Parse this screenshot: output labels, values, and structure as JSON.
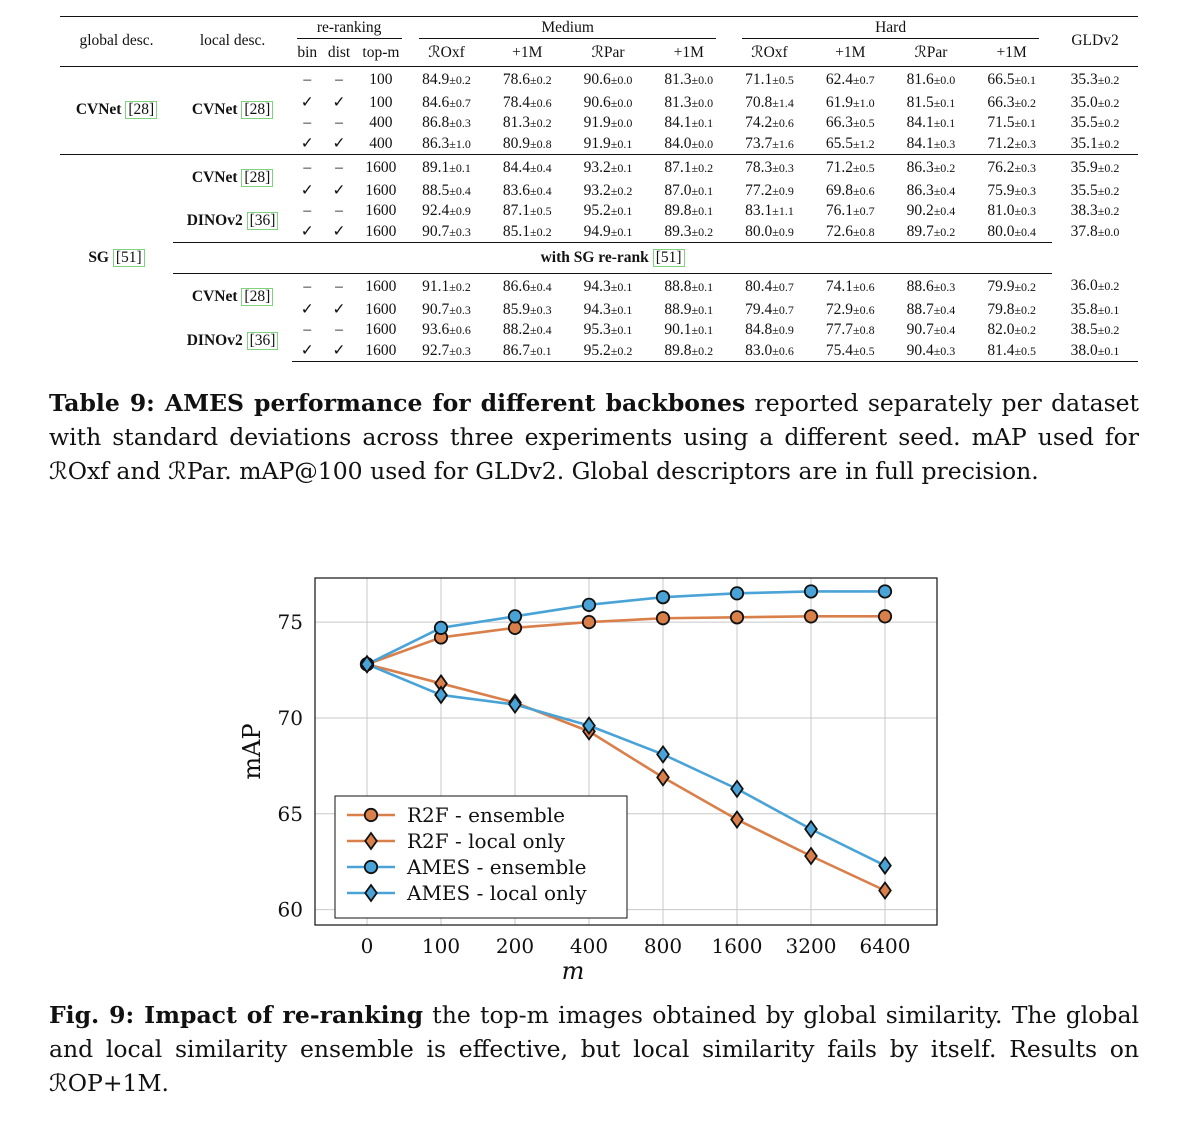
{
  "table": {
    "headers": {
      "global_desc": "global desc.",
      "local_desc": "local desc.",
      "reranking": "re-ranking",
      "medium": "Medium",
      "hard": "Hard",
      "gldv2": "GLDv2",
      "bin": "bin",
      "dist": "dist",
      "topm": "top-m",
      "roxf": "ℛOxf",
      "rpar": "ℛPar",
      "plus1m": "+1M"
    },
    "cvnet_group": {
      "global": "CVNet",
      "global_cite": "[28]",
      "local": "CVNet",
      "local_cite": "[28]",
      "rows": [
        {
          "bin": "–",
          "dist": "–",
          "topm": "100",
          "vals": [
            "84.9",
            "±0.2",
            "78.6",
            "±0.2",
            "90.6",
            "±0.0",
            "81.3",
            "±0.0",
            "71.1",
            "±0.5",
            "62.4",
            "±0.7",
            "81.6",
            "±0.0",
            "66.5",
            "±0.1",
            "35.3",
            "±0.2"
          ]
        },
        {
          "bin": "✓",
          "dist": "✓",
          "topm": "100",
          "vals": [
            "84.6",
            "±0.7",
            "78.4",
            "±0.6",
            "90.6",
            "±0.0",
            "81.3",
            "±0.0",
            "70.8",
            "±1.4",
            "61.9",
            "±1.0",
            "81.5",
            "±0.1",
            "66.3",
            "±0.2",
            "35.0",
            "±0.2"
          ]
        },
        {
          "bin": "–",
          "dist": "–",
          "topm": "400",
          "vals": [
            "86.8",
            "±0.3",
            "81.3",
            "±0.2",
            "91.9",
            "±0.0",
            "84.1",
            "±0.1",
            "74.2",
            "±0.6",
            "66.3",
            "±0.5",
            "84.1",
            "±0.1",
            "71.5",
            "±0.1",
            "35.5",
            "±0.2"
          ]
        },
        {
          "bin": "✓",
          "dist": "✓",
          "topm": "400",
          "vals": [
            "86.3",
            "±1.0",
            "80.9",
            "±0.8",
            "91.9",
            "±0.1",
            "84.0",
            "±0.0",
            "73.7",
            "±1.6",
            "65.5",
            "±1.2",
            "84.1",
            "±0.3",
            "71.2",
            "±0.3",
            "35.1",
            "±0.2"
          ]
        }
      ]
    },
    "sg_group": {
      "global": "SG",
      "global_cite": "[51]",
      "sub1": [
        {
          "local": "CVNet",
          "cite": "[28]",
          "rows": [
            {
              "bin": "–",
              "dist": "–",
              "topm": "1600",
              "vals": [
                "89.1",
                "±0.1",
                "84.4",
                "±0.4",
                "93.2",
                "±0.1",
                "87.1",
                "±0.2",
                "78.3",
                "±0.3",
                "71.2",
                "±0.5",
                "86.3",
                "±0.2",
                "76.2",
                "±0.3",
                "35.9",
                "±0.2"
              ]
            },
            {
              "bin": "✓",
              "dist": "✓",
              "topm": "1600",
              "vals": [
                "88.5",
                "±0.4",
                "83.6",
                "±0.4",
                "93.2",
                "±0.2",
                "87.0",
                "±0.1",
                "77.2",
                "±0.9",
                "69.8",
                "±0.6",
                "86.3",
                "±0.4",
                "75.9",
                "±0.3",
                "35.5",
                "±0.2"
              ]
            }
          ]
        },
        {
          "local": "DINOv2",
          "cite": "[36]",
          "rows": [
            {
              "bin": "–",
              "dist": "–",
              "topm": "1600",
              "vals": [
                "92.4",
                "±0.9",
                "87.1",
                "±0.5",
                "95.2",
                "±0.1",
                "89.8",
                "±0.1",
                "83.1",
                "±1.1",
                "76.1",
                "±0.7",
                "90.2",
                "±0.4",
                "81.0",
                "±0.3",
                "38.3",
                "±0.2"
              ]
            },
            {
              "bin": "✓",
              "dist": "✓",
              "topm": "1600",
              "vals": [
                "90.7",
                "±0.3",
                "85.1",
                "±0.2",
                "94.9",
                "±0.1",
                "89.3",
                "±0.2",
                "80.0",
                "±0.9",
                "72.6",
                "±0.8",
                "89.7",
                "±0.2",
                "80.0",
                "±0.4",
                "37.8",
                "±0.0"
              ]
            }
          ]
        }
      ],
      "rerank_label": "with SG re-rank",
      "rerank_cite": "[51]",
      "sub2": [
        {
          "local": "CVNet",
          "cite": "[28]",
          "rows": [
            {
              "bin": "–",
              "dist": "–",
              "topm": "1600",
              "vals": [
                "91.1",
                "±0.2",
                "86.6",
                "±0.4",
                "94.3",
                "±0.1",
                "88.8",
                "±0.1",
                "80.4",
                "±0.7",
                "74.1",
                "±0.6",
                "88.6",
                "±0.3",
                "79.9",
                "±0.2",
                "36.0",
                "±0.2"
              ]
            },
            {
              "bin": "✓",
              "dist": "✓",
              "topm": "1600",
              "vals": [
                "90.7",
                "±0.3",
                "85.9",
                "±0.3",
                "94.3",
                "±0.1",
                "88.9",
                "±0.1",
                "79.4",
                "±0.7",
                "72.9",
                "±0.6",
                "88.7",
                "±0.4",
                "79.8",
                "±0.2",
                "35.8",
                "±0.1"
              ]
            }
          ]
        },
        {
          "local": "DINOv2",
          "cite": "[36]",
          "rows": [
            {
              "bin": "–",
              "dist": "–",
              "topm": "1600",
              "vals": [
                "93.6",
                "±0.6",
                "88.2",
                "±0.4",
                "95.3",
                "±0.1",
                "90.1",
                "±0.1",
                "84.8",
                "±0.9",
                "77.7",
                "±0.8",
                "90.7",
                "±0.4",
                "82.0",
                "±0.2",
                "38.5",
                "±0.2"
              ]
            },
            {
              "bin": "✓",
              "dist": "✓",
              "topm": "1600",
              "vals": [
                "92.7",
                "±0.3",
                "86.7",
                "±0.1",
                "95.2",
                "±0.2",
                "89.8",
                "±0.2",
                "83.0",
                "±0.6",
                "75.4",
                "±0.5",
                "90.4",
                "±0.3",
                "81.4",
                "±0.5",
                "38.0",
                "±0.1"
              ]
            }
          ]
        }
      ]
    }
  },
  "table_caption": {
    "label": "Table 9: AMES performance for different backbones",
    "text": " reported separately per dataset with standard deviations across three experiments using a different seed. mAP used for ℛOxf and ℛPar. mAP@100 used for GLDv2. Global descriptors are in full precision."
  },
  "figure_caption": {
    "label": "Fig. 9: Impact of re-ranking",
    "text": " the top-m images obtained by global similarity. The global and local similarity ensemble is effective, but local similarity fails by itself. Results on ℛOP+1M."
  },
  "chart_data": {
    "type": "line",
    "xlabel": "m",
    "ylabel": "mAP",
    "categories": [
      "0",
      "100",
      "200",
      "400",
      "800",
      "1600",
      "3200",
      "6400"
    ],
    "ylim": [
      59.2,
      77.3
    ],
    "yticks": [
      60,
      65,
      70,
      75
    ],
    "grid": true,
    "legend_position": "bottom-left",
    "colors": {
      "r2f": "#d97f4a",
      "ames": "#4aa3d6"
    },
    "series": [
      {
        "name": "R2F - ensemble",
        "marker": "circle",
        "color": "#d97f4a",
        "values": [
          72.8,
          74.2,
          74.7,
          75.0,
          75.2,
          75.25,
          75.3,
          75.3
        ]
      },
      {
        "name": "R2F - local only",
        "marker": "diamond",
        "color": "#d97f4a",
        "values": [
          72.8,
          71.8,
          70.8,
          69.3,
          66.9,
          64.7,
          62.8,
          61.0
        ]
      },
      {
        "name": "AMES - ensemble",
        "marker": "circle",
        "color": "#4aa3d6",
        "values": [
          72.8,
          74.7,
          75.3,
          75.9,
          76.3,
          76.5,
          76.6,
          76.6
        ]
      },
      {
        "name": "AMES - local only",
        "marker": "diamond",
        "color": "#4aa3d6",
        "values": [
          72.8,
          71.2,
          70.7,
          69.6,
          68.1,
          66.3,
          64.2,
          62.3
        ]
      }
    ]
  }
}
